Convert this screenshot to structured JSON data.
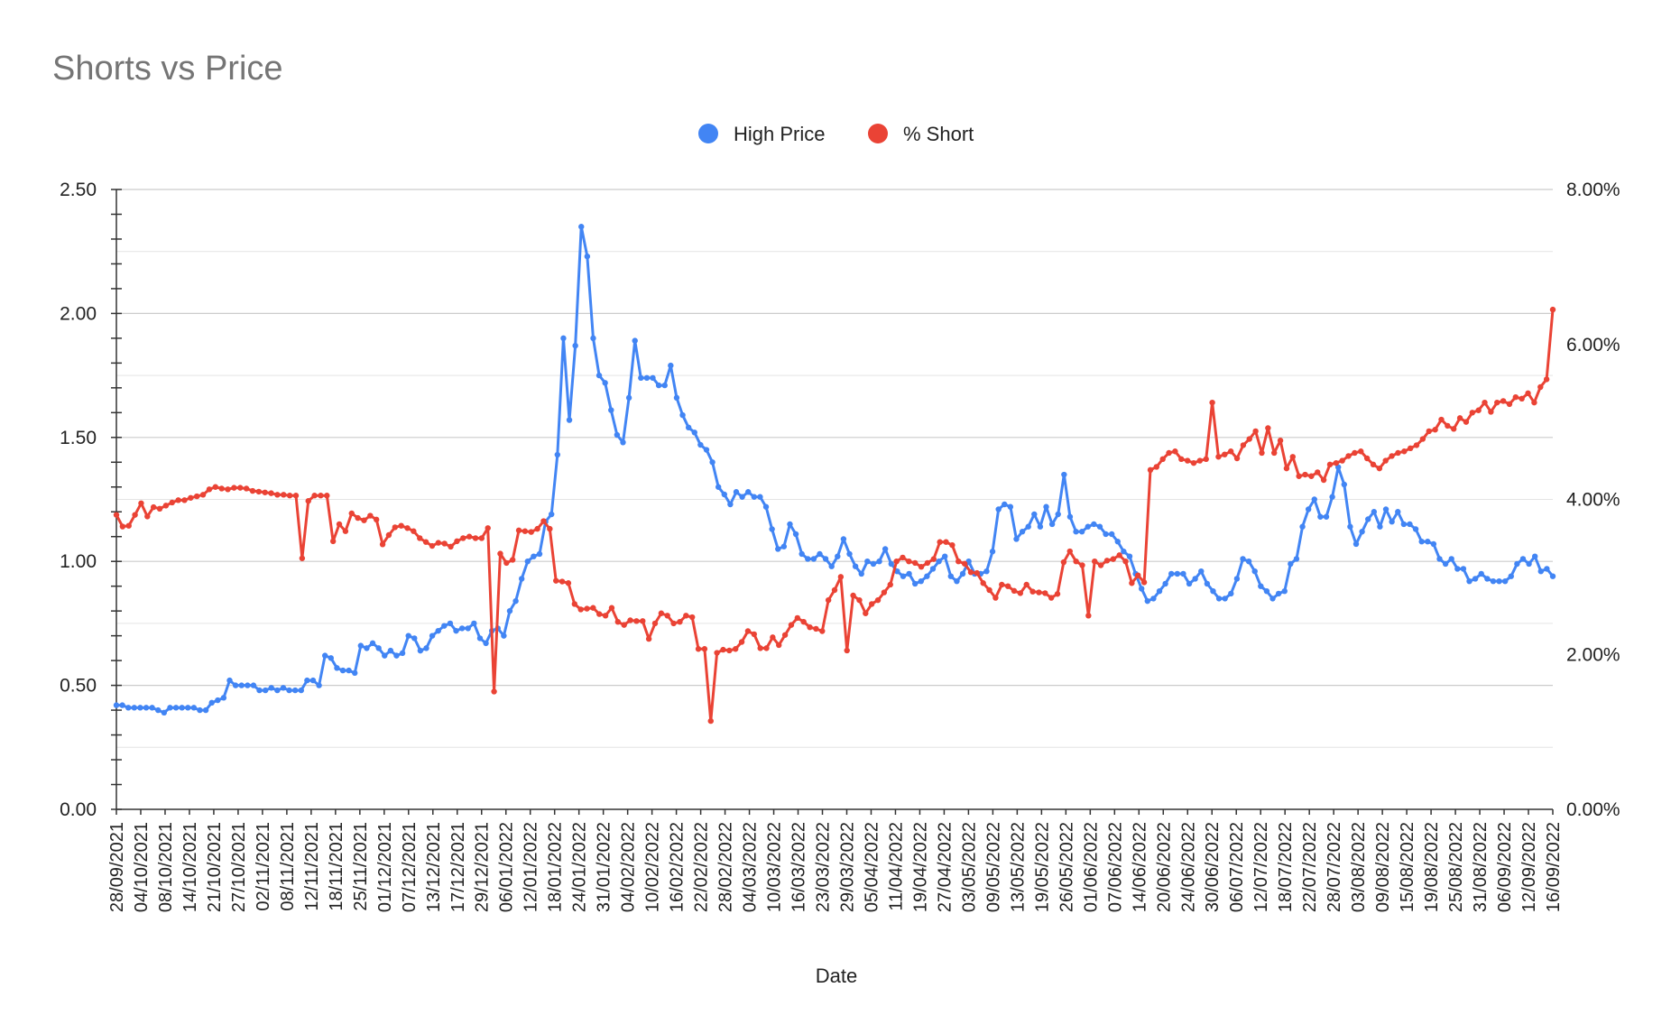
{
  "chart_data": {
    "type": "line",
    "title": "Shorts vs Price",
    "xlabel": "Date",
    "ylabel_left": "",
    "ylabel_right": "",
    "legend_position": "top",
    "grid": true,
    "colors": {
      "high_price": "#4285f4",
      "short": "#ea4335",
      "title": "#757575"
    },
    "y_left": {
      "min": 0,
      "max": 2.5,
      "ticks": [
        0,
        0.5,
        1.0,
        1.5,
        2.0,
        2.5
      ],
      "tick_labels": [
        "0.00",
        "0.50",
        "1.00",
        "1.50",
        "2.00",
        "2.50"
      ]
    },
    "y_right": {
      "min": 0,
      "max": 0.08,
      "ticks": [
        0,
        0.02,
        0.04,
        0.06,
        0.08
      ],
      "tick_labels": [
        "0.00%",
        "2.00%",
        "4.00%",
        "6.00%",
        "8.00%"
      ]
    },
    "x_tick_labels": [
      "28/09/2021",
      "04/10/2021",
      "08/10/2021",
      "14/10/2021",
      "21/10/2021",
      "27/10/2021",
      "02/11/2021",
      "08/11/2021",
      "12/11/2021",
      "18/11/2021",
      "25/11/2021",
      "01/12/2021",
      "07/12/2021",
      "13/12/2021",
      "17/12/2021",
      "29/12/2021",
      "06/01/2022",
      "12/01/2022",
      "18/01/2022",
      "24/01/2022",
      "31/01/2022",
      "04/02/2022",
      "10/02/2022",
      "16/02/2022",
      "22/02/2022",
      "28/02/2022",
      "04/03/2022",
      "10/03/2022",
      "16/03/2022",
      "23/03/2022",
      "29/03/2022",
      "05/04/2022",
      "11/04/2022",
      "19/04/2022",
      "27/04/2022",
      "03/05/2022",
      "09/05/2022",
      "13/05/2022",
      "19/05/2022",
      "26/05/2022",
      "01/06/2022",
      "07/06/2022",
      "14/06/2022",
      "20/06/2022",
      "24/06/2022",
      "30/06/2022",
      "06/07/2022",
      "12/07/2022",
      "18/07/2022",
      "22/07/2022",
      "28/07/2022",
      "03/08/2022",
      "09/08/2022",
      "15/08/2022",
      "19/08/2022",
      "25/08/2022",
      "31/08/2022",
      "06/09/2022",
      "12/09/2022",
      "16/09/2022"
    ],
    "series": [
      {
        "name": "High Price",
        "axis": "left",
        "values": [
          0.42,
          0.42,
          0.41,
          0.41,
          0.41,
          0.41,
          0.41,
          0.4,
          0.39,
          0.41,
          0.41,
          0.41,
          0.41,
          0.41,
          0.4,
          0.4,
          0.43,
          0.44,
          0.45,
          0.52,
          0.5,
          0.5,
          0.5,
          0.5,
          0.48,
          0.48,
          0.49,
          0.48,
          0.49,
          0.48,
          0.48,
          0.48,
          0.52,
          0.52,
          0.5,
          0.62,
          0.61,
          0.57,
          0.56,
          0.56,
          0.55,
          0.66,
          0.65,
          0.67,
          0.65,
          0.62,
          0.64,
          0.62,
          0.63,
          0.7,
          0.69,
          0.64,
          0.65,
          0.7,
          0.72,
          0.74,
          0.75,
          0.72,
          0.73,
          0.73,
          0.75,
          0.69,
          0.67,
          0.72,
          0.73,
          0.7,
          0.8,
          0.84,
          0.93,
          1.0,
          1.02,
          1.03,
          1.16,
          1.19,
          1.43,
          1.9,
          1.57,
          1.87,
          2.35,
          2.23,
          1.9,
          1.75,
          1.72,
          1.61,
          1.51,
          1.48,
          1.66,
          1.89,
          1.74,
          1.74,
          1.74,
          1.71,
          1.71,
          1.79,
          1.66,
          1.59,
          1.54,
          1.52,
          1.47,
          1.45,
          1.4,
          1.3,
          1.27,
          1.23,
          1.28,
          1.26,
          1.28,
          1.26,
          1.26,
          1.22,
          1.13,
          1.05,
          1.06,
          1.15,
          1.11,
          1.03,
          1.01,
          1.01,
          1.03,
          1.01,
          0.98,
          1.02,
          1.09,
          1.03,
          0.98,
          0.95,
          1.0,
          0.99,
          1.0,
          1.05,
          0.99,
          0.96,
          0.94,
          0.95,
          0.91,
          0.92,
          0.94,
          0.97,
          1.0,
          1.02,
          0.94,
          0.92,
          0.95,
          1.0,
          0.95,
          0.95,
          0.96,
          1.04,
          1.21,
          1.23,
          1.22,
          1.09,
          1.12,
          1.14,
          1.19,
          1.14,
          1.22,
          1.15,
          1.19,
          1.35,
          1.18,
          1.12,
          1.12,
          1.14,
          1.15,
          1.14,
          1.11,
          1.11,
          1.08,
          1.04,
          1.02,
          0.95,
          0.89,
          0.84,
          0.85,
          0.88,
          0.91,
          0.95,
          0.95,
          0.95,
          0.91,
          0.93,
          0.96,
          0.91,
          0.88,
          0.85,
          0.85,
          0.87,
          0.93,
          1.01,
          1.0,
          0.96,
          0.9,
          0.88,
          0.85,
          0.87,
          0.88,
          0.99,
          1.01,
          1.14,
          1.21,
          1.25,
          1.18,
          1.18,
          1.26,
          1.38,
          1.31,
          1.14,
          1.07,
          1.12,
          1.17,
          1.2,
          1.14,
          1.21,
          1.16,
          1.2,
          1.15,
          1.15,
          1.13,
          1.08,
          1.08,
          1.07,
          1.01,
          0.99,
          1.01,
          0.97,
          0.97,
          0.92,
          0.93,
          0.95,
          0.93,
          0.92,
          0.92,
          0.92,
          0.94,
          0.99,
          1.01,
          0.99,
          1.02,
          0.96,
          0.97,
          0.94
        ]
      },
      {
        "name": "% Short",
        "axis": "right",
        "values": [
          0.038,
          0.0365,
          0.0366,
          0.038,
          0.0395,
          0.0378,
          0.039,
          0.0388,
          0.0392,
          0.0396,
          0.0399,
          0.0399,
          0.0402,
          0.0404,
          0.0406,
          0.0413,
          0.0416,
          0.0414,
          0.0413,
          0.0415,
          0.0415,
          0.0414,
          0.0411,
          0.041,
          0.0409,
          0.0408,
          0.0406,
          0.0406,
          0.0405,
          0.0405,
          0.0324,
          0.0398,
          0.0405,
          0.0405,
          0.0405,
          0.0346,
          0.0368,
          0.0359,
          0.0382,
          0.0376,
          0.0373,
          0.0379,
          0.0374,
          0.0342,
          0.0354,
          0.0364,
          0.0366,
          0.0363,
          0.0359,
          0.035,
          0.0345,
          0.034,
          0.0344,
          0.0343,
          0.0339,
          0.0346,
          0.035,
          0.0352,
          0.035,
          0.035,
          0.0363,
          0.0152,
          0.033,
          0.0318,
          0.0322,
          0.036,
          0.0359,
          0.0358,
          0.0362,
          0.0372,
          0.0362,
          0.0295,
          0.0294,
          0.0292,
          0.0265,
          0.0258,
          0.0259,
          0.026,
          0.0252,
          0.025,
          0.026,
          0.0242,
          0.0238,
          0.0244,
          0.0243,
          0.0243,
          0.022,
          0.024,
          0.0253,
          0.025,
          0.024,
          0.0242,
          0.025,
          0.0248,
          0.0207,
          0.0207,
          0.0114,
          0.0202,
          0.0206,
          0.0205,
          0.0207,
          0.0216,
          0.023,
          0.0226,
          0.0208,
          0.0208,
          0.0222,
          0.0212,
          0.0225,
          0.0238,
          0.0247,
          0.0242,
          0.0235,
          0.0233,
          0.023,
          0.027,
          0.0283,
          0.03,
          0.0205,
          0.0276,
          0.027,
          0.0253,
          0.0265,
          0.027,
          0.028,
          0.029,
          0.032,
          0.0325,
          0.032,
          0.0318,
          0.0313,
          0.0318,
          0.0323,
          0.0345,
          0.0345,
          0.0341,
          0.032,
          0.0317,
          0.0306,
          0.0305,
          0.0292,
          0.0283,
          0.0273,
          0.029,
          0.0288,
          0.0282,
          0.0279,
          0.029,
          0.0281,
          0.028,
          0.0279,
          0.0273,
          0.0278,
          0.0319,
          0.0333,
          0.032,
          0.0315,
          0.025,
          0.032,
          0.0315,
          0.0321,
          0.0323,
          0.0328,
          0.032,
          0.0292,
          0.0302,
          0.0293,
          0.0438,
          0.0442,
          0.0452,
          0.046,
          0.0462,
          0.0452,
          0.045,
          0.0447,
          0.045,
          0.0452,
          0.0525,
          0.0455,
          0.0458,
          0.0462,
          0.0453,
          0.047,
          0.0478,
          0.0488,
          0.046,
          0.0492,
          0.046,
          0.0476,
          0.044,
          0.0455,
          0.043,
          0.0432,
          0.043,
          0.0435,
          0.0425,
          0.0445,
          0.0447,
          0.045,
          0.0456,
          0.046,
          0.0462,
          0.0453,
          0.0445,
          0.044,
          0.045,
          0.0456,
          0.046,
          0.0462,
          0.0466,
          0.047,
          0.0478,
          0.0488,
          0.049,
          0.0503,
          0.0495,
          0.0491,
          0.0505,
          0.05,
          0.0512,
          0.0515,
          0.0525,
          0.0513,
          0.0525,
          0.0527,
          0.0523,
          0.0532,
          0.053,
          0.0537,
          0.0525,
          0.0545,
          0.0555,
          0.0645
        ]
      }
    ]
  }
}
